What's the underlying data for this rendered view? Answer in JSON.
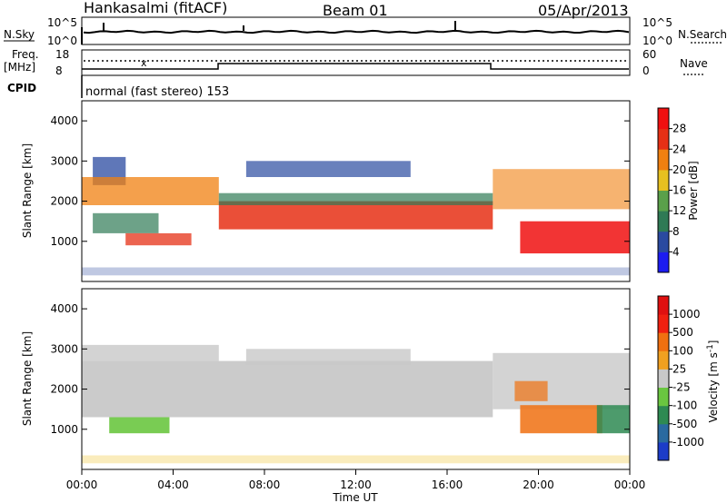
{
  "header": {
    "station": "Hankasalmi (fitACF)",
    "beam": "Beam 01",
    "date": "05/Apr/2013"
  },
  "noise_panel": {
    "left_label": "N.Sky",
    "right_label": "N.Search",
    "ytick_top": "10^5",
    "ytick_bottom": "10^0"
  },
  "freq_panel": {
    "left_label_1": "Freq.",
    "left_label_2": "[MHz]",
    "ytick_top": "18",
    "ytick_bottom": "8",
    "right_label": "Nave",
    "rtick_top": "60",
    "rtick_bottom": "0",
    "cpid_label": "CPID",
    "cpid_text": "normal (fast stereo) 153"
  },
  "chart_data": [
    {
      "type": "heatmap",
      "name": "power",
      "ylabel": "Slant Range [km]",
      "xlabel": "",
      "ylim": [
        0,
        4500
      ],
      "yticks": [
        "1000",
        "2000",
        "3000",
        "4000"
      ],
      "colorbar": {
        "label": "Power [dB]",
        "ticks": [
          "4",
          "8",
          "12",
          "16",
          "20",
          "24",
          "28"
        ],
        "colors": [
          "#1c1cf0",
          "#2a4aa0",
          "#2f7a55",
          "#5aa04a",
          "#e6c020",
          "#f08010",
          "#e63015",
          "#f01010"
        ]
      }
    },
    {
      "type": "heatmap",
      "name": "velocity",
      "ylabel": "Slant Range [km]",
      "xlabel": "Time UT",
      "ylim": [
        0,
        4500
      ],
      "yticks": [
        "1000",
        "2000",
        "3000",
        "4000"
      ],
      "xticks": [
        "00:00",
        "04:00",
        "08:00",
        "12:00",
        "16:00",
        "20:00",
        "00:00"
      ],
      "colorbar": {
        "label": "Velocity [m s",
        "label_sup": "-1",
        "label_end": "]",
        "ticks": [
          "1000",
          "500",
          "100",
          "25",
          "-25",
          "-100",
          "-500",
          "-1000"
        ],
        "colors": [
          "#1c3cc8",
          "#2a6aa0",
          "#2e8a52",
          "#6ac640",
          "#c8c8c8",
          "#f0a020",
          "#f07010",
          "#f02010",
          "#e01010"
        ]
      }
    }
  ]
}
